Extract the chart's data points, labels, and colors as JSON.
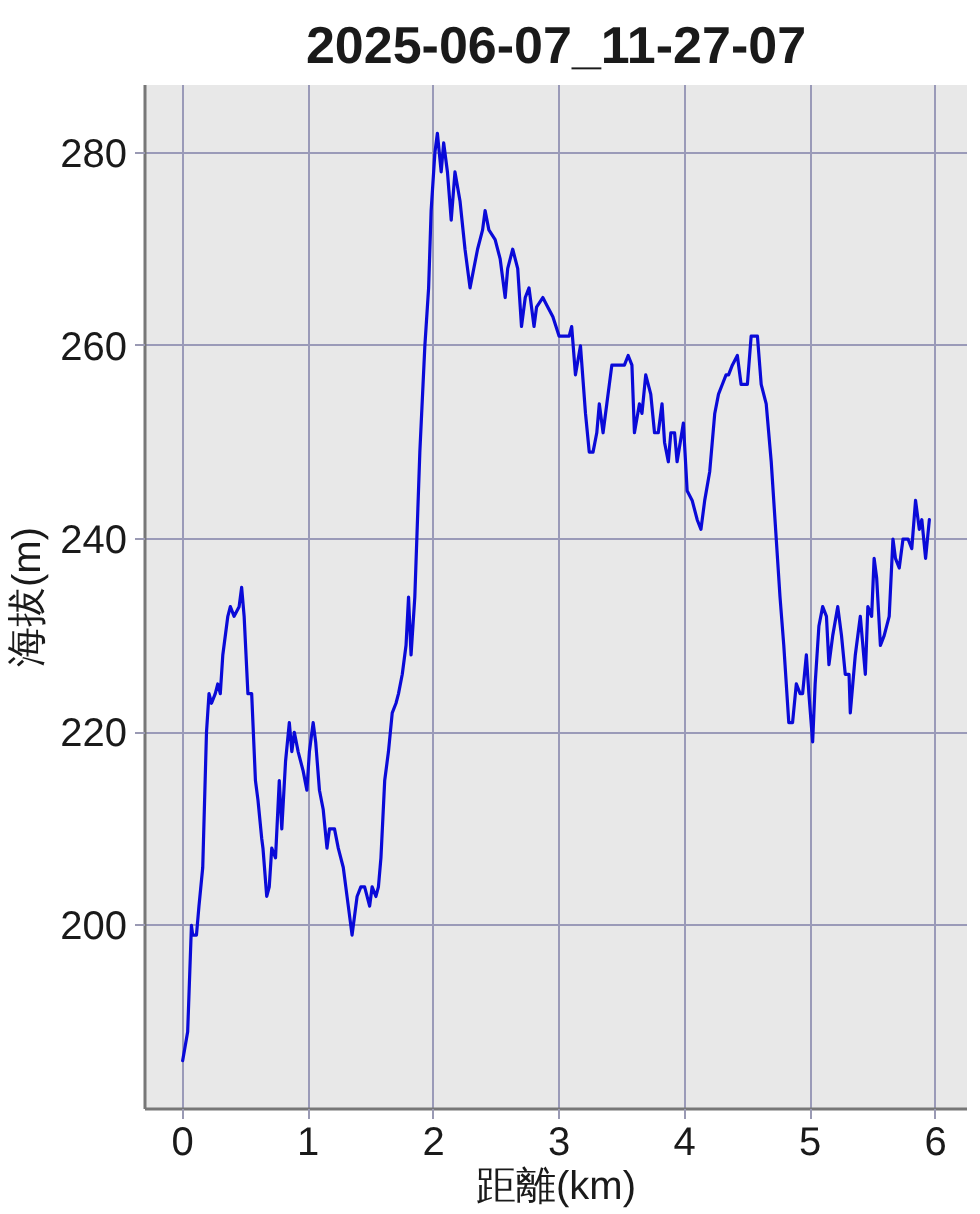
{
  "chart_data": {
    "type": "line",
    "title": "2025-06-07_11-27-07",
    "xlabel": "距離(km)",
    "ylabel": "海拔(m)",
    "x": [
      0.0,
      0.04,
      0.07,
      0.08,
      0.11,
      0.13,
      0.16,
      0.19,
      0.21,
      0.23,
      0.26,
      0.28,
      0.3,
      0.32,
      0.36,
      0.38,
      0.41,
      0.45,
      0.47,
      0.49,
      0.52,
      0.55,
      0.58,
      0.6,
      0.63,
      0.64,
      0.67,
      0.69,
      0.71,
      0.74,
      0.77,
      0.79,
      0.82,
      0.85,
      0.87,
      0.89,
      0.92,
      0.96,
      0.99,
      1.01,
      1.04,
      1.06,
      1.09,
      1.12,
      1.15,
      1.17,
      1.21,
      1.24,
      1.28,
      1.32,
      1.35,
      1.39,
      1.42,
      1.45,
      1.49,
      1.51,
      1.54,
      1.56,
      1.58,
      1.61,
      1.64,
      1.67,
      1.7,
      1.72,
      1.75,
      1.78,
      1.8,
      1.82,
      1.85,
      1.89,
      1.93,
      1.96,
      1.98,
      2.01,
      2.03,
      2.06,
      2.08,
      2.11,
      2.14,
      2.17,
      2.21,
      2.25,
      2.29,
      2.32,
      2.35,
      2.39,
      2.41,
      2.44,
      2.49,
      2.53,
      2.57,
      2.59,
      2.63,
      2.67,
      2.7,
      2.73,
      2.76,
      2.8,
      2.82,
      2.87,
      2.91,
      2.95,
      3.0,
      3.08,
      3.1,
      3.13,
      3.17,
      3.21,
      3.24,
      3.27,
      3.3,
      3.32,
      3.35,
      3.38,
      3.42,
      3.49,
      3.52,
      3.55,
      3.58,
      3.6,
      3.64,
      3.66,
      3.69,
      3.73,
      3.76,
      3.79,
      3.82,
      3.84,
      3.87,
      3.89,
      3.92,
      3.94,
      3.99,
      4.02,
      4.06,
      4.1,
      4.13,
      4.16,
      4.2,
      4.24,
      4.27,
      4.3,
      4.33,
      4.35,
      4.38,
      4.42,
      4.45,
      4.5,
      4.53,
      4.58,
      4.61,
      4.65,
      4.69,
      4.72,
      4.76,
      4.79,
      4.83,
      4.86,
      4.89,
      4.92,
      4.94,
      4.97,
      4.99,
      5.02,
      5.04,
      5.07,
      5.1,
      5.13,
      5.15,
      5.18,
      5.22,
      5.25,
      5.28,
      5.31,
      5.32,
      5.36,
      5.4,
      5.44,
      5.46,
      5.49,
      5.51,
      5.53,
      5.56,
      5.59,
      5.63,
      5.66,
      5.68,
      5.71,
      5.74,
      5.78,
      5.81,
      5.84,
      5.87,
      5.89,
      5.92,
      5.95
    ],
    "series": [
      {
        "color": "#0a0ad8",
        "values": [
          186,
          189,
          200,
          199,
          199,
          202,
          206,
          220,
          224,
          223,
          224,
          225,
          224,
          228,
          232,
          233,
          232,
          233,
          235,
          232,
          224,
          224,
          215,
          213,
          209,
          208,
          203,
          204,
          208,
          207,
          215,
          210,
          217,
          221,
          218,
          220,
          218,
          216,
          214,
          218,
          221,
          219,
          214,
          212,
          208,
          210,
          210,
          208,
          206,
          202,
          199,
          203,
          204,
          204,
          202,
          204,
          203,
          204,
          207,
          215,
          218,
          222,
          223,
          224,
          226,
          229,
          234,
          228,
          234,
          249,
          260,
          266,
          274,
          280,
          282,
          278,
          281,
          278,
          273,
          278,
          275,
          270,
          266,
          268,
          270,
          272,
          274,
          272,
          271,
          269,
          265,
          268,
          270,
          268,
          262,
          265,
          266,
          262,
          264,
          265,
          264,
          263,
          261,
          261,
          262,
          257,
          260,
          253,
          249,
          249,
          251,
          254,
          251,
          254,
          258,
          258,
          258,
          259,
          258,
          251,
          254,
          253,
          257,
          255,
          251,
          251,
          254,
          250,
          248,
          251,
          251,
          248,
          252,
          245,
          244,
          242,
          241,
          244,
          247,
          253,
          255,
          256,
          257,
          257,
          258,
          259,
          256,
          256,
          261,
          261,
          256,
          254,
          248,
          242,
          234,
          229,
          221,
          221,
          225,
          224,
          224,
          228,
          224,
          219,
          225,
          231,
          233,
          232,
          227,
          230,
          233,
          230,
          226,
          226,
          222,
          228,
          232,
          226,
          233,
          232,
          238,
          236,
          229,
          230,
          232,
          240,
          238,
          237,
          240,
          240,
          239,
          244,
          241,
          242,
          238,
          242
        ]
      }
    ],
    "xlim": [
      -0.3,
      6.25
    ],
    "ylim": [
      181,
      287
    ],
    "xticks": [
      0,
      1,
      2,
      3,
      4,
      5,
      6
    ],
    "yticks": [
      200,
      220,
      240,
      260,
      280
    ],
    "grid": true
  }
}
